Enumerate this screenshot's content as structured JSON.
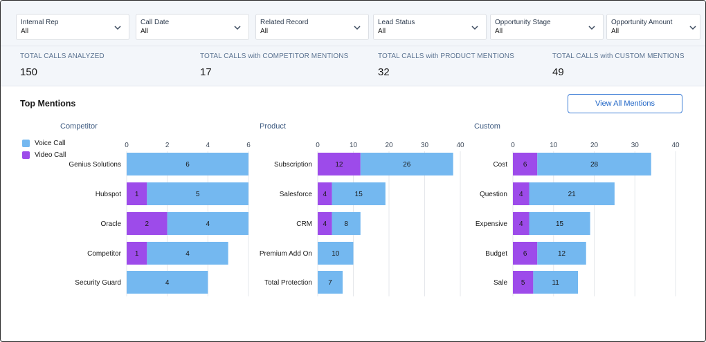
{
  "filters": [
    {
      "label": "Internal Rep",
      "value": "All"
    },
    {
      "label": "Call Date",
      "value": "All"
    },
    {
      "label": "Related Record",
      "value": "All"
    },
    {
      "label": "Lead Status",
      "value": "All"
    },
    {
      "label": "Opportunity Stage",
      "value": "All"
    },
    {
      "label": "Opportunity Amount",
      "value": "All"
    }
  ],
  "kpis": [
    {
      "label": "TOTAL CALLS ANALYZED",
      "value": "150"
    },
    {
      "label": "TOTAL CALLS with COMPETITOR MENTIONS",
      "value": "17"
    },
    {
      "label": "TOTAL CALLS with PRODUCT MENTIONS",
      "value": "32"
    },
    {
      "label": "TOTAL CALLS with CUSTOM MENTIONS",
      "value": "49"
    }
  ],
  "section": {
    "title": "Top Mentions",
    "view_all_label": "View All Mentions"
  },
  "legend": [
    {
      "label": "Voice Call",
      "color": "#74b8f0"
    },
    {
      "label": "Video Call",
      "color": "#9d4bea"
    }
  ],
  "chart_data": [
    {
      "type": "bar",
      "orientation": "horizontal",
      "stacked": true,
      "title": "Competitor",
      "categories": [
        "Genius Solutions",
        "Hubspot",
        "Oracle",
        "Competitor",
        "Security Guard"
      ],
      "ticks": [
        "0",
        "2",
        "4",
        "6"
      ],
      "xlim": [
        0,
        6
      ],
      "series": [
        {
          "name": "Video Call",
          "values": [
            0,
            1,
            2,
            1,
            0
          ]
        },
        {
          "name": "Voice Call",
          "values": [
            6,
            5,
            4,
            4,
            4
          ]
        }
      ]
    },
    {
      "type": "bar",
      "orientation": "horizontal",
      "stacked": true,
      "title": "Product",
      "categories": [
        "Subscription",
        "Salesforce",
        "CRM",
        "Premium Add On",
        "Total Protection"
      ],
      "ticks": [
        "0",
        "10",
        "20",
        "30",
        "40"
      ],
      "xlim": [
        0,
        40
      ],
      "series": [
        {
          "name": "Video Call",
          "values": [
            12,
            4,
            4,
            0,
            0
          ]
        },
        {
          "name": "Voice Call",
          "values": [
            26,
            15,
            8,
            10,
            7
          ]
        }
      ]
    },
    {
      "type": "bar",
      "orientation": "horizontal",
      "stacked": true,
      "title": "Custom",
      "categories": [
        "Cost",
        "Question",
        "Expensive",
        "Budget",
        "Sale"
      ],
      "ticks": [
        "0",
        "10",
        "20",
        "30",
        "40"
      ],
      "xlim": [
        0,
        40
      ],
      "series": [
        {
          "name": "Video Call",
          "values": [
            6,
            4,
            4,
            6,
            5
          ]
        },
        {
          "name": "Voice Call",
          "values": [
            28,
            21,
            15,
            12,
            11
          ]
        }
      ]
    }
  ]
}
